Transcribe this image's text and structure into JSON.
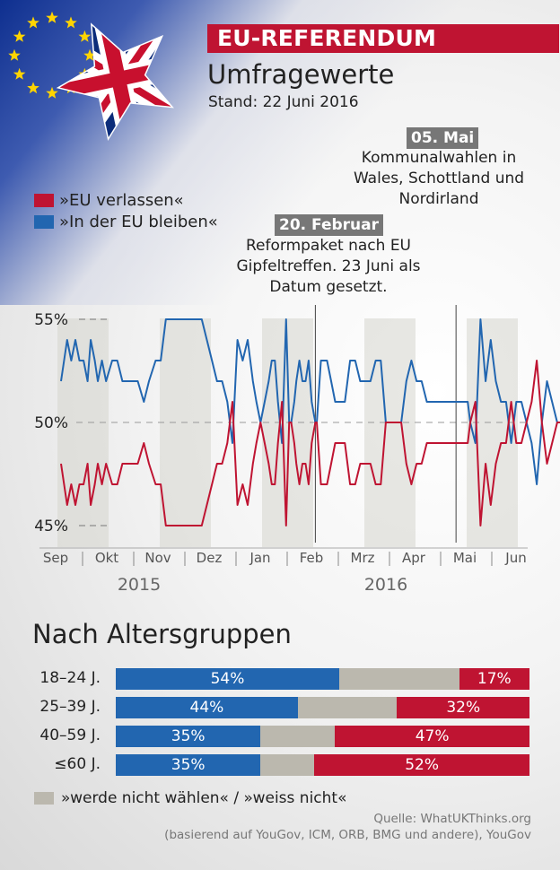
{
  "header": {
    "banner": "EU-REFERENDUM",
    "subtitle": "Umfragewerte",
    "stand": "Stand: 22 Juni 2016"
  },
  "legend": {
    "leave": "»EU verlassen«",
    "remain": "»In der EU bleiben«"
  },
  "annotations": [
    {
      "tag": "20. Februar",
      "lines": [
        "Reformpaket nach EU",
        "Gipfeltreffen. 23 Juni als",
        "Datum gesetzt."
      ]
    },
    {
      "tag": "05. Mai",
      "lines": [
        "Kommunalwahlen in",
        "Wales, Schottland und",
        "Nordirland"
      ]
    }
  ],
  "colors": {
    "leave": "#bf1432",
    "remain": "#2266b0",
    "undecided": "#bbb8ae",
    "banner": "#bf1432"
  },
  "chart_data": [
    {
      "type": "line",
      "title": "Umfragewerte",
      "ylim": [
        45,
        55
      ],
      "yticks": [
        55,
        50,
        45
      ],
      "yticklabels": [
        "55%",
        "50%",
        "45%"
      ],
      "months": [
        "Sep",
        "Okt",
        "Nov",
        "Dez",
        "Jan",
        "Feb",
        "Mrz",
        "Apr",
        "Mai",
        "Jun"
      ],
      "years": [
        "2015",
        "2016"
      ],
      "x": [
        0,
        0.12,
        0.2,
        0.28,
        0.36,
        0.44,
        0.52,
        0.58,
        0.66,
        0.72,
        0.8,
        0.88,
        1.0,
        1.1,
        1.2,
        1.3,
        1.42,
        1.5,
        1.62,
        1.72,
        1.85,
        1.95,
        2.05,
        2.15,
        2.25,
        2.35,
        2.45,
        2.6,
        2.75,
        2.85,
        2.95,
        3.05,
        3.15,
        3.25,
        3.35,
        3.45,
        3.55,
        3.65,
        3.75,
        3.82,
        3.9,
        3.98,
        4.06,
        4.12,
        4.18,
        4.24,
        4.32,
        4.4,
        4.46,
        4.5,
        4.56,
        4.6,
        4.66,
        4.72,
        4.78,
        4.84,
        4.9,
        4.97,
        5.0,
        5.08,
        5.14,
        5.2,
        5.28,
        5.36,
        5.45,
        5.55,
        5.65,
        5.75,
        5.85,
        5.95,
        6.05,
        6.15,
        6.25,
        6.35,
        6.45,
        6.55,
        6.65,
        6.75,
        6.85,
        6.95,
        7.05,
        7.15,
        7.25,
        7.35,
        7.45,
        7.55,
        7.65,
        7.75,
        7.85,
        7.95,
        8.0,
        8.1,
        8.2,
        8.3,
        8.4,
        8.5,
        8.6,
        8.7,
        8.8,
        8.9,
        9.0,
        9.1,
        9.2,
        9.3,
        9.4,
        9.5,
        9.6,
        9.7,
        9.8,
        9.9
      ],
      "series": [
        {
          "name": "»In der EU bleiben«",
          "color": "#2266b0",
          "values": [
            52,
            54,
            53,
            54,
            53,
            53,
            52,
            54,
            53,
            52,
            53,
            52,
            53,
            53,
            52,
            52,
            52,
            52,
            51,
            52,
            53,
            53,
            55,
            55,
            55,
            55,
            55,
            55,
            55,
            54,
            53,
            52,
            52,
            51,
            49,
            54,
            53,
            54,
            52,
            51,
            50,
            51,
            52,
            53,
            53,
            51,
            49,
            55,
            50,
            50,
            51,
            52,
            53,
            52,
            52,
            53,
            51,
            50,
            50,
            53,
            53,
            53,
            52,
            51,
            51,
            51,
            53,
            53,
            52,
            52,
            52,
            53,
            53,
            50,
            50,
            50,
            50,
            52,
            53,
            52,
            52,
            51,
            51,
            51,
            51,
            51,
            51,
            51,
            51,
            51,
            50,
            49,
            55,
            52,
            54,
            52,
            51,
            51,
            49,
            51,
            51,
            50,
            49,
            47,
            50,
            52,
            51,
            50,
            50,
            50
          ]
        },
        {
          "name": "»EU verlassen«",
          "color": "#bf1432",
          "values": [
            48,
            46,
            47,
            46,
            47,
            47,
            48,
            46,
            47,
            48,
            47,
            48,
            47,
            47,
            48,
            48,
            48,
            48,
            49,
            48,
            47,
            47,
            45,
            45,
            45,
            45,
            45,
            45,
            45,
            46,
            47,
            48,
            48,
            49,
            51,
            46,
            47,
            46,
            48,
            49,
            50,
            49,
            48,
            47,
            47,
            49,
            51,
            45,
            50,
            50,
            49,
            48,
            47,
            48,
            48,
            47,
            49,
            50,
            50,
            47,
            47,
            47,
            48,
            49,
            49,
            49,
            47,
            47,
            48,
            48,
            48,
            47,
            47,
            50,
            50,
            50,
            50,
            48,
            47,
            48,
            48,
            49,
            49,
            49,
            49,
            49,
            49,
            49,
            49,
            49,
            50,
            51,
            45,
            48,
            46,
            48,
            49,
            49,
            51,
            49,
            49,
            50,
            51,
            53,
            50,
            48,
            49,
            50,
            50,
            50
          ]
        }
      ],
      "events": [
        {
          "x": 5.2,
          "label": "20. Februar"
        },
        {
          "x": 7.95,
          "label": "05. Mai"
        }
      ]
    },
    {
      "type": "bar",
      "title": "Nach Altersgruppen",
      "categories": [
        "18–24 J.",
        "25–39 J.",
        "40–59 J.",
        "≤60 J."
      ],
      "series": [
        {
          "name": "»In der EU bleiben«",
          "values": [
            54,
            44,
            35,
            35
          ]
        },
        {
          "name": "»werde nicht wählen« / »weiss nicht«",
          "values": [
            29,
            24,
            18,
            13
          ]
        },
        {
          "name": "»EU verlassen«",
          "values": [
            17,
            32,
            47,
            52
          ]
        }
      ],
      "labels": {
        "remain": [
          "54%",
          "44%",
          "35%",
          "35%"
        ],
        "leave": [
          "17%",
          "32%",
          "47%",
          "52%"
        ]
      }
    }
  ],
  "age_section": {
    "title": "Nach Altersgruppen",
    "undecided_legend": "»werde nicht wählen« / »weiss nicht«"
  },
  "source": {
    "line1": "Quelle: WhatUKThinks.org",
    "line2": "(basierend auf YouGov, ICM, ORB, BMG und andere), YouGov"
  }
}
